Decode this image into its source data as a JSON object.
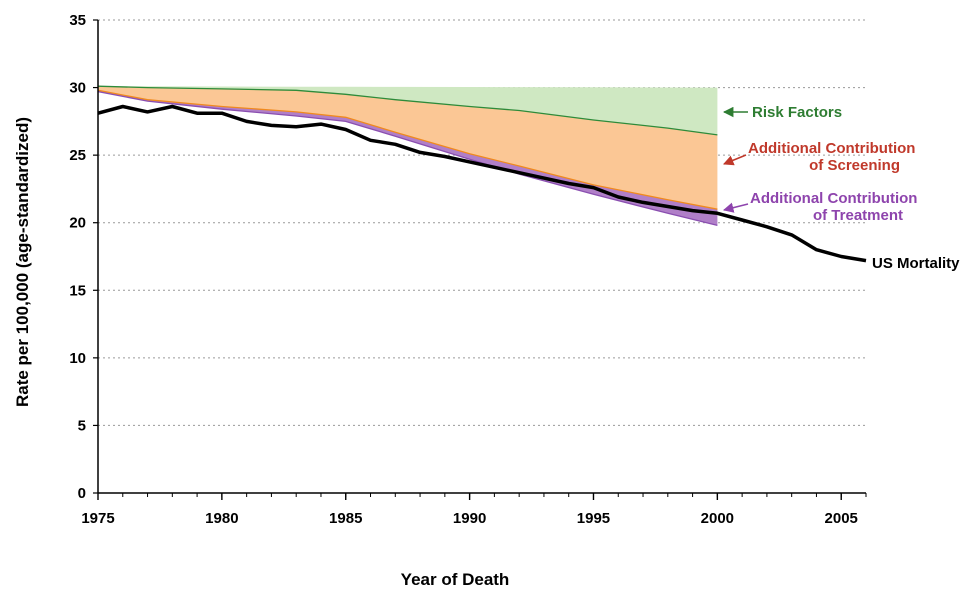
{
  "chart_data": {
    "type": "area",
    "title": "",
    "xlabel": "Year of Death",
    "ylabel": "Rate per 100,000 (age-standardized)",
    "xlim": [
      1975,
      2006
    ],
    "ylim": [
      0,
      35
    ],
    "x_ticks": [
      1975,
      1980,
      1985,
      1990,
      1995,
      2000,
      2005
    ],
    "y_ticks": [
      0,
      5,
      10,
      15,
      20,
      25,
      30,
      35
    ],
    "grid": "horizontal dotted",
    "colors": {
      "risk_factors_fill": "#cfe8c2",
      "risk_factors_line": "#2e8b3a",
      "screening_fill": "#fbc795",
      "screening_line": "#f08a1e",
      "treatment_fill": "#b07fc8",
      "treatment_line": "#8a4fb0",
      "mortality_line": "#000000",
      "risk_label": "#2e7d32",
      "screening_label": "#c0392b",
      "treatment_label": "#8e44ad"
    },
    "baseline": {
      "x": [
        1975,
        2000
      ],
      "y": [
        30.1,
        30.0
      ]
    },
    "series": [
      {
        "name": "Risk Factors",
        "x": [
          1975,
          1977,
          1980,
          1983,
          1985,
          1987,
          1990,
          1992,
          1995,
          1998,
          2000
        ],
        "y": [
          30.1,
          30.0,
          29.9,
          29.8,
          29.5,
          29.1,
          28.6,
          28.3,
          27.6,
          27.0,
          26.5
        ]
      },
      {
        "name": "Additional Contribution of Screening",
        "x": [
          1975,
          1977,
          1980,
          1983,
          1985,
          1987,
          1990,
          1992,
          1995,
          1998,
          2000
        ],
        "y": [
          29.8,
          29.1,
          28.6,
          28.2,
          27.8,
          26.7,
          25.1,
          24.2,
          22.8,
          21.7,
          21.0
        ]
      },
      {
        "name": "Additional Contribution of Treatment",
        "x": [
          1975,
          1977,
          1980,
          1983,
          1985,
          1987,
          1990,
          1992,
          1995,
          1998,
          2000
        ],
        "y": [
          29.7,
          29.0,
          28.4,
          27.9,
          27.5,
          26.4,
          24.7,
          23.6,
          22.1,
          20.7,
          19.8
        ]
      },
      {
        "name": "US Mortality",
        "x": [
          1975,
          1976,
          1977,
          1978,
          1979,
          1980,
          1981,
          1982,
          1983,
          1984,
          1985,
          1986,
          1987,
          1988,
          1989,
          1990,
          1991,
          1992,
          1993,
          1994,
          1995,
          1996,
          1997,
          1998,
          1999,
          2000,
          2001,
          2002,
          2003,
          2004,
          2005,
          2006
        ],
        "y": [
          28.1,
          28.6,
          28.2,
          28.6,
          28.1,
          28.1,
          27.5,
          27.2,
          27.1,
          27.3,
          26.9,
          26.1,
          25.8,
          25.2,
          24.9,
          24.5,
          24.1,
          23.7,
          23.3,
          22.9,
          22.6,
          21.9,
          21.5,
          21.2,
          20.9,
          20.7,
          20.2,
          19.7,
          19.1,
          18.0,
          17.5,
          17.2
        ]
      }
    ],
    "annotations": {
      "risk": [
        "Risk Factors"
      ],
      "screening": [
        "Additional Contribution",
        "of Screening"
      ],
      "treatment": [
        "Additional Contribution",
        "of Treatment"
      ],
      "mortality": [
        "US Mortality"
      ]
    }
  }
}
